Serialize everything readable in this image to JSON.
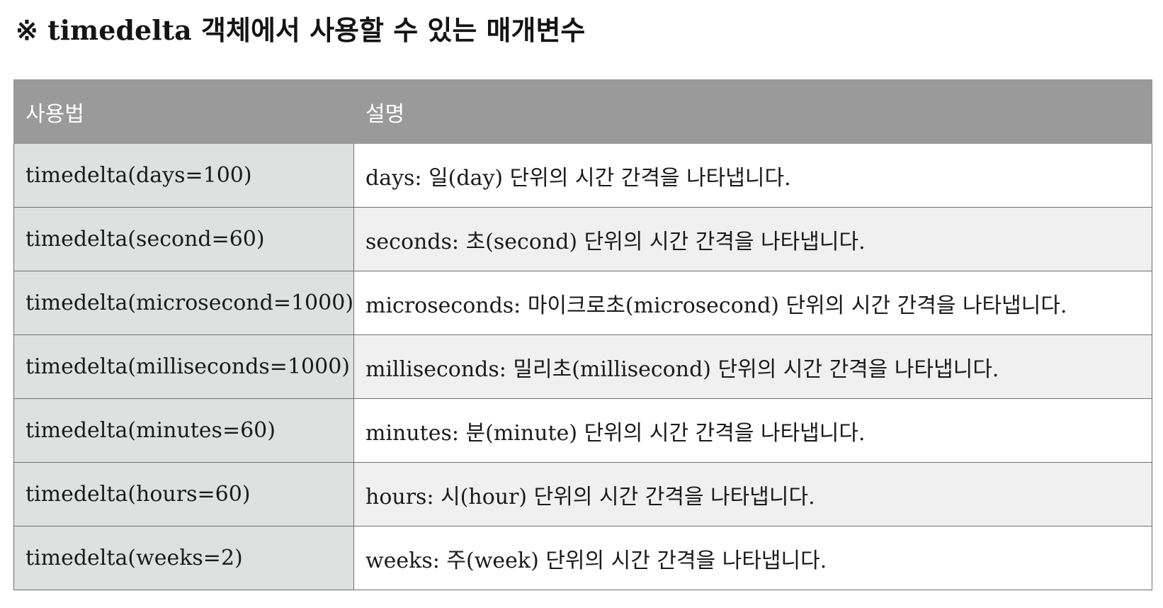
{
  "title": "※ timedelta 객체에서 사용할 수 있는 매개변수",
  "table": {
    "headers": [
      "사용법",
      "설명"
    ],
    "rows": [
      {
        "usage": "timedelta(days=100)",
        "description": "days: 일(day) 단위의 시간 간격을 나타냅니다."
      },
      {
        "usage": "timedelta(second=60)",
        "description": "seconds: 초(second) 단위의 시간 간격을 나타냅니다."
      },
      {
        "usage": "timedelta(microsecond=1000)",
        "description": "microseconds: 마이크로초(microsecond) 단위의 시간 간격을 나타냅니다."
      },
      {
        "usage": "timedelta(milliseconds=1000)",
        "description": "milliseconds: 밀리초(millisecond) 단위의 시간 간격을 나타냅니다."
      },
      {
        "usage": "timedelta(minutes=60)",
        "description": "minutes: 분(minute) 단위의 시간 간격을 나타냅니다."
      },
      {
        "usage": "timedelta(hours=60)",
        "description": "hours: 시(hour) 단위의 시간 간격을 나타냅니다."
      },
      {
        "usage": "timedelta(weeks=2)",
        "description": "weeks: 주(week) 단위의 시간 간격을 나타냅니다."
      }
    ]
  },
  "colors": {
    "header_bg": "#9a9a9a",
    "header_text": "#ffffff",
    "usage_col_bg": "#dfe0e0",
    "row_alt_bg": "#f0f0f0",
    "border": "#6f6f6f"
  }
}
